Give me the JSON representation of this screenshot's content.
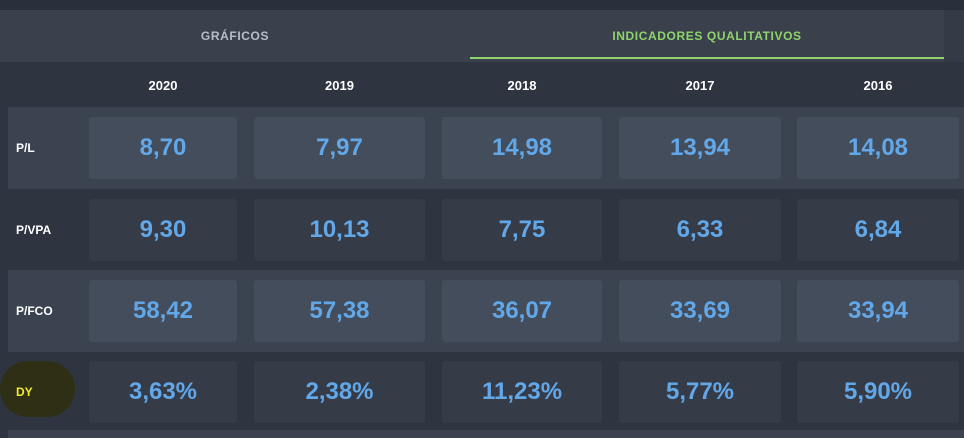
{
  "tabs": {
    "graficos": "GRÁFICOS",
    "indicadores": "INDICADORES QUALITATIVOS"
  },
  "years": [
    "2020",
    "2019",
    "2018",
    "2017",
    "2016"
  ],
  "rows": [
    {
      "label": "P/L",
      "values": [
        "8,70",
        "7,97",
        "14,98",
        "13,94",
        "14,08"
      ]
    },
    {
      "label": "P/VPA",
      "values": [
        "9,30",
        "10,13",
        "7,75",
        "6,33",
        "6,84"
      ]
    },
    {
      "label": "P/FCO",
      "values": [
        "58,42",
        "57,38",
        "36,07",
        "33,69",
        "33,94"
      ]
    },
    {
      "label": "DY",
      "values": [
        "3,63%",
        "2,38%",
        "11,23%",
        "5,77%",
        "5,90%"
      ]
    }
  ],
  "colors": {
    "accent_tab": "#8fd46a",
    "value_text": "#62a7e8",
    "dy_label": "#f4ec2a"
  }
}
